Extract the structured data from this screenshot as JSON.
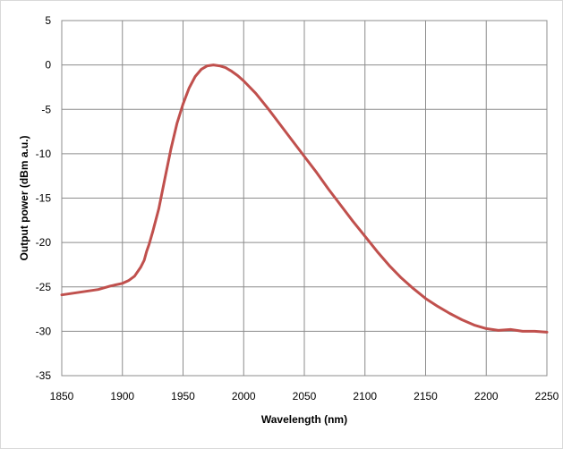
{
  "chart_data": {
    "type": "line",
    "title": "",
    "xlabel": "Wavelength (nm)",
    "ylabel": "Output power (dBm  a.u.)",
    "xlim": [
      1850,
      2250
    ],
    "ylim": [
      -35,
      5
    ],
    "xticks": [
      1850,
      1900,
      1950,
      2000,
      2050,
      2100,
      2150,
      2200,
      2250
    ],
    "yticks": [
      5,
      0,
      -5,
      -10,
      -15,
      -20,
      -25,
      -30,
      -35
    ],
    "grid": true,
    "legend": "none",
    "series": [
      {
        "color": "#c0504d",
        "x": [
          1850,
          1860,
          1870,
          1880,
          1890,
          1900,
          1905,
          1910,
          1915,
          1918,
          1920,
          1922,
          1925,
          1930,
          1935,
          1940,
          1945,
          1950,
          1955,
          1960,
          1965,
          1970,
          1975,
          1980,
          1985,
          1990,
          1995,
          2000,
          2010,
          2020,
          2030,
          2040,
          2050,
          2060,
          2070,
          2080,
          2090,
          2100,
          2110,
          2120,
          2130,
          2140,
          2150,
          2160,
          2170,
          2180,
          2190,
          2200,
          2210,
          2220,
          2230,
          2240,
          2250
        ],
        "y": [
          -25.9,
          -25.7,
          -25.5,
          -25.3,
          -24.9,
          -24.6,
          -24.3,
          -23.8,
          -22.8,
          -22.0,
          -21.0,
          -20.2,
          -18.8,
          -16.2,
          -12.8,
          -9.5,
          -6.6,
          -4.4,
          -2.6,
          -1.3,
          -0.5,
          -0.1,
          0.0,
          -0.1,
          -0.3,
          -0.7,
          -1.2,
          -1.8,
          -3.2,
          -4.9,
          -6.7,
          -8.5,
          -10.3,
          -12.1,
          -14.0,
          -15.8,
          -17.6,
          -19.3,
          -21.0,
          -22.6,
          -24.0,
          -25.2,
          -26.3,
          -27.2,
          -28.0,
          -28.7,
          -29.3,
          -29.7,
          -29.9,
          -29.8,
          -30.0,
          -30.0,
          -30.1
        ]
      }
    ]
  }
}
